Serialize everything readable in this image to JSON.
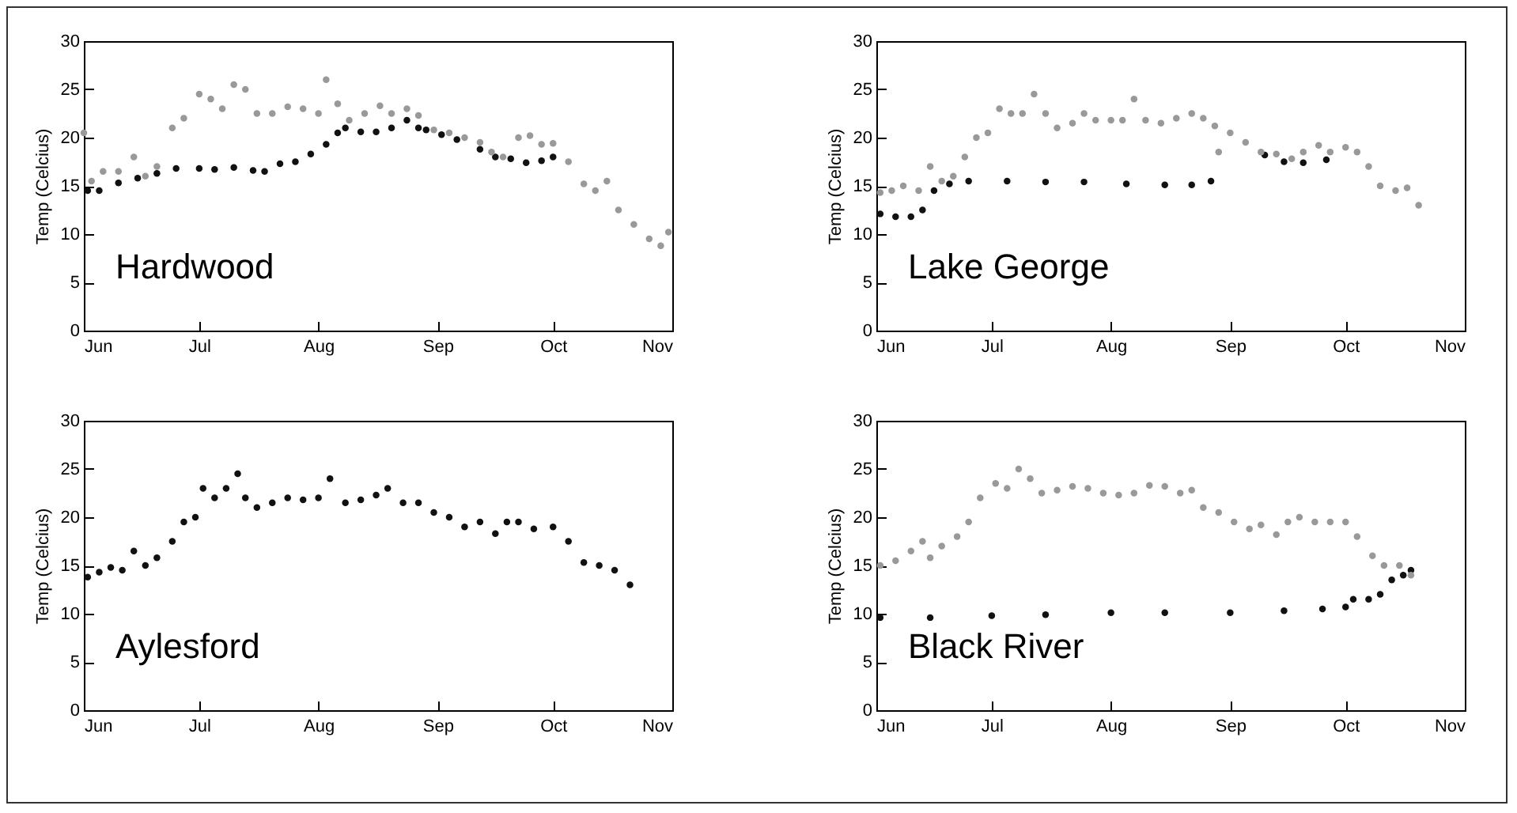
{
  "chart_data": [
    {
      "type": "scatter",
      "annotations": [
        "Hardwood"
      ],
      "ylabel": "Temp (Celcius)",
      "xlim": [
        "--06-01",
        "--11-01"
      ],
      "xticks": [
        {
          "value": "--06-01",
          "label": "Jun"
        },
        {
          "value": "--07-01",
          "label": "Jul"
        },
        {
          "value": "--08-01",
          "label": "Aug"
        },
        {
          "value": "--09-01",
          "label": "Sep"
        },
        {
          "value": "--10-01",
          "label": "Oct"
        },
        {
          "value": "--11-01",
          "label": "Nov"
        }
      ],
      "ylim": [
        0,
        30
      ],
      "yticks": [
        0,
        5,
        10,
        15,
        20,
        25,
        30
      ],
      "grid": false,
      "legend": false,
      "marker": "circle",
      "series": [
        {
          "color": "#111111",
          "x": [
            "--06-02",
            "--06-05",
            "--06-10",
            "--06-15",
            "--06-20",
            "--06-25",
            "--07-01",
            "--07-05",
            "--07-10",
            "--07-15",
            "--07-18",
            "--07-22",
            "--07-26",
            "--07-30",
            "--08-03",
            "--08-06",
            "--08-08",
            "--08-12",
            "--08-16",
            "--08-20",
            "--08-24",
            "--08-27",
            "--08-29",
            "--09-02",
            "--09-06",
            "--09-12",
            "--09-16",
            "--09-20",
            "--09-24",
            "--09-28",
            "--10-01"
          ],
          "values": [
            14.5,
            14.5,
            15.3,
            15.8,
            16.3,
            16.8,
            16.8,
            16.7,
            16.9,
            16.6,
            16.5,
            17.3,
            17.5,
            18.3,
            19.3,
            20.5,
            21,
            20.6,
            20.6,
            21,
            21.8,
            21,
            20.8,
            20.3,
            19.8,
            18.8,
            18,
            17.8,
            17.4,
            17.6,
            18
          ]
        },
        {
          "color": "#999999",
          "x": [
            "--06-01",
            "--06-03",
            "--06-06",
            "--06-10",
            "--06-14",
            "--06-17",
            "--06-20",
            "--06-24",
            "--06-27",
            "--07-01",
            "--07-04",
            "--07-07",
            "--07-10",
            "--07-13",
            "--07-16",
            "--07-20",
            "--07-24",
            "--07-28",
            "--08-01",
            "--08-03",
            "--08-06",
            "--08-09",
            "--08-13",
            "--08-17",
            "--08-20",
            "--08-24",
            "--08-27",
            "--08-31",
            "--09-04",
            "--09-08",
            "--09-12",
            "--09-15",
            "--09-18",
            "--09-22",
            "--09-25",
            "--09-28",
            "--10-01",
            "--10-05",
            "--10-09",
            "--10-12",
            "--10-15",
            "--10-18",
            "--10-22",
            "--10-26",
            "--10-29",
            "--10-31"
          ],
          "values": [
            20.5,
            15.5,
            16.5,
            16.5,
            18,
            16,
            17,
            21,
            22,
            24.5,
            24,
            23,
            25.5,
            25,
            22.5,
            22.5,
            23.2,
            23,
            22.5,
            26,
            23.5,
            21.8,
            22.5,
            23.3,
            22.5,
            23,
            22.3,
            20.8,
            20.5,
            20,
            19.5,
            18.5,
            18,
            20,
            20.2,
            19.3,
            19.4,
            17.5,
            15.2,
            14.5,
            15.5,
            12.5,
            11,
            9.5,
            8.8,
            10.2
          ]
        }
      ]
    },
    {
      "type": "scatter",
      "annotations": [
        "Lake George"
      ],
      "ylabel": "Temp (Celcius)",
      "xlim": [
        "--06-01",
        "--11-01"
      ],
      "xticks": [
        {
          "value": "--06-01",
          "label": "Jun"
        },
        {
          "value": "--07-01",
          "label": "Jul"
        },
        {
          "value": "--08-01",
          "label": "Aug"
        },
        {
          "value": "--09-01",
          "label": "Sep"
        },
        {
          "value": "--10-01",
          "label": "Oct"
        },
        {
          "value": "--11-01",
          "label": "Nov"
        }
      ],
      "ylim": [
        0,
        30
      ],
      "yticks": [
        0,
        5,
        10,
        15,
        20,
        25,
        30
      ],
      "grid": false,
      "legend": false,
      "marker": "circle",
      "series": [
        {
          "color": "#111111",
          "x": [
            "--06-02",
            "--06-06",
            "--06-10",
            "--06-13",
            "--06-16",
            "--06-20",
            "--06-25",
            "--07-05",
            "--07-15",
            "--07-25",
            "--08-05",
            "--08-15",
            "--08-22",
            "--08-27",
            "--09-10",
            "--09-15",
            "--09-20",
            "--09-26"
          ],
          "values": [
            12.1,
            11.8,
            11.8,
            12.5,
            14.5,
            15.2,
            15.5,
            15.5,
            15.4,
            15.4,
            15.2,
            15.1,
            15.1,
            15.5,
            18.2,
            17.5,
            17.4,
            17.7
          ]
        },
        {
          "color": "#999999",
          "x": [
            "--06-02",
            "--06-05",
            "--06-08",
            "--06-12",
            "--06-15",
            "--06-18",
            "--06-21",
            "--06-24",
            "--06-27",
            "--06-30",
            "--07-03",
            "--07-06",
            "--07-09",
            "--07-12",
            "--07-15",
            "--07-18",
            "--07-22",
            "--07-25",
            "--07-28",
            "--08-01",
            "--08-04",
            "--08-07",
            "--08-10",
            "--08-14",
            "--08-18",
            "--08-22",
            "--08-25",
            "--08-28",
            "--08-29",
            "--09-01",
            "--09-05",
            "--09-09",
            "--09-13",
            "--09-17",
            "--09-20",
            "--09-24",
            "--09-27",
            "--10-01",
            "--10-04",
            "--10-07",
            "--10-10",
            "--10-14",
            "--10-17",
            "--10-20"
          ],
          "values": [
            14.3,
            14.5,
            15,
            14.5,
            17,
            15.5,
            16,
            18,
            20,
            20.5,
            23,
            22.5,
            22.5,
            24.5,
            22.5,
            21,
            21.5,
            22.5,
            21.8,
            21.8,
            21.8,
            24,
            21.8,
            21.5,
            22,
            22.5,
            22,
            21.2,
            18.5,
            20.5,
            19.5,
            18.5,
            18.3,
            17.8,
            18.5,
            19.2,
            18.5,
            19,
            18.5,
            17,
            15,
            14.5,
            14.8,
            13
          ]
        }
      ]
    },
    {
      "type": "scatter",
      "annotations": [
        "Aylesford"
      ],
      "ylabel": "Temp (Celcius)",
      "xlim": [
        "--06-01",
        "--11-01"
      ],
      "xticks": [
        {
          "value": "--06-01",
          "label": "Jun"
        },
        {
          "value": "--07-01",
          "label": "Jul"
        },
        {
          "value": "--08-01",
          "label": "Aug"
        },
        {
          "value": "--09-01",
          "label": "Sep"
        },
        {
          "value": "--10-01",
          "label": "Oct"
        },
        {
          "value": "--11-01",
          "label": "Nov"
        }
      ],
      "ylim": [
        0,
        30
      ],
      "yticks": [
        0,
        5,
        10,
        15,
        20,
        25,
        30
      ],
      "grid": false,
      "legend": false,
      "marker": "circle",
      "series": [
        {
          "color": "#111111",
          "x": [
            "--06-02",
            "--06-05",
            "--06-08",
            "--06-11",
            "--06-14",
            "--06-17",
            "--06-20",
            "--06-24",
            "--06-27",
            "--06-30",
            "--07-02",
            "--07-05",
            "--07-08",
            "--07-11",
            "--07-13",
            "--07-16",
            "--07-20",
            "--07-24",
            "--07-28",
            "--08-01",
            "--08-04",
            "--08-08",
            "--08-12",
            "--08-16",
            "--08-19",
            "--08-23",
            "--08-27",
            "--08-31",
            "--09-04",
            "--09-08",
            "--09-12",
            "--09-16",
            "--09-19",
            "--09-22",
            "--09-26",
            "--10-01",
            "--10-05",
            "--10-09",
            "--10-13",
            "--10-17",
            "--10-21"
          ],
          "values": [
            13.8,
            14.3,
            14.8,
            14.5,
            16.5,
            15,
            15.8,
            17.5,
            19.5,
            20,
            23,
            22,
            23,
            24.5,
            22,
            21,
            21.5,
            22,
            21.8,
            22,
            24,
            21.5,
            21.8,
            22.3,
            23,
            21.5,
            21.5,
            20.5,
            20,
            19,
            19.5,
            18.3,
            19.5,
            19.5,
            18.8,
            19,
            17.5,
            15.3,
            15,
            14.5,
            13
          ]
        }
      ]
    },
    {
      "type": "scatter",
      "annotations": [
        "Black River"
      ],
      "ylabel": "Temp (Celcius)",
      "xlim": [
        "--06-01",
        "--11-01"
      ],
      "xticks": [
        {
          "value": "--06-01",
          "label": "Jun"
        },
        {
          "value": "--07-01",
          "label": "Jul"
        },
        {
          "value": "--08-01",
          "label": "Aug"
        },
        {
          "value": "--09-01",
          "label": "Sep"
        },
        {
          "value": "--10-01",
          "label": "Oct"
        },
        {
          "value": "--11-01",
          "label": "Nov"
        }
      ],
      "ylim": [
        0,
        30
      ],
      "yticks": [
        0,
        5,
        10,
        15,
        20,
        25,
        30
      ],
      "grid": false,
      "legend": false,
      "marker": "circle",
      "series": [
        {
          "color": "#111111",
          "x": [
            "--06-02",
            "--06-15",
            "--07-01",
            "--07-15",
            "--08-01",
            "--08-15",
            "--09-01",
            "--09-15",
            "--09-25",
            "--10-01",
            "--10-03",
            "--10-07",
            "--10-10",
            "--10-13",
            "--10-16",
            "--10-18"
          ],
          "values": [
            9.6,
            9.6,
            9.8,
            9.9,
            10.1,
            10.1,
            10.1,
            10.3,
            10.5,
            10.7,
            11.5,
            11.5,
            12,
            13.5,
            14,
            14.5
          ]
        },
        {
          "color": "#999999",
          "x": [
            "--06-02",
            "--06-06",
            "--06-10",
            "--06-13",
            "--06-15",
            "--06-18",
            "--06-22",
            "--06-25",
            "--06-28",
            "--07-02",
            "--07-05",
            "--07-08",
            "--07-11",
            "--07-14",
            "--07-18",
            "--07-22",
            "--07-26",
            "--07-30",
            "--08-03",
            "--08-07",
            "--08-11",
            "--08-15",
            "--08-19",
            "--08-22",
            "--08-25",
            "--08-29",
            "--09-02",
            "--09-06",
            "--09-09",
            "--09-13",
            "--09-16",
            "--09-19",
            "--09-23",
            "--09-27",
            "--10-01",
            "--10-04",
            "--10-08",
            "--10-11",
            "--10-15",
            "--10-18"
          ],
          "values": [
            15,
            15.5,
            16.5,
            17.5,
            15.8,
            17,
            18,
            19.5,
            22,
            23.5,
            23,
            25,
            24,
            22.5,
            22.8,
            23.2,
            23,
            22.5,
            22.3,
            22.5,
            23.3,
            23.2,
            22.5,
            22.8,
            21,
            20.5,
            19.5,
            18.8,
            19.2,
            18.2,
            19.5,
            20,
            19.5,
            19.5,
            19.5,
            18,
            16,
            15,
            15,
            14
          ]
        }
      ]
    }
  ]
}
